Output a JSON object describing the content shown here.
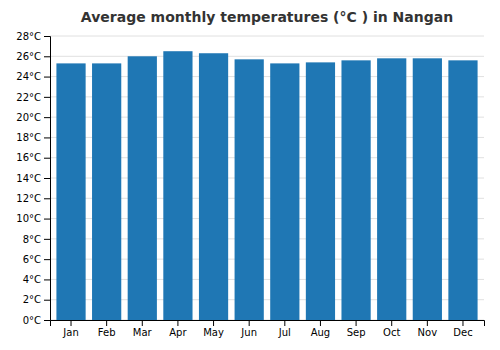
{
  "chart_data": {
    "type": "bar",
    "title": "Average monthly temperatures (°C ) in Nangan",
    "categories": [
      "Jan",
      "Feb",
      "Mar",
      "Apr",
      "May",
      "Jun",
      "Jul",
      "Aug",
      "Sep",
      "Oct",
      "Nov",
      "Dec"
    ],
    "values": [
      25.3,
      25.3,
      26.0,
      26.5,
      26.3,
      25.7,
      25.3,
      25.4,
      25.6,
      25.8,
      25.8,
      25.6
    ],
    "ylim": [
      0,
      28
    ],
    "yticks": [
      {
        "value": 0,
        "label": "0°C"
      },
      {
        "value": 2,
        "label": "2°C"
      },
      {
        "value": 4,
        "label": "4°C"
      },
      {
        "value": 6,
        "label": "6°C"
      },
      {
        "value": 8,
        "label": "8°C"
      },
      {
        "value": 10,
        "label": "10°C"
      },
      {
        "value": 12,
        "label": "12°C"
      },
      {
        "value": 14,
        "label": "14°C"
      },
      {
        "value": 16,
        "label": "16°C"
      },
      {
        "value": 18,
        "label": "18°C"
      },
      {
        "value": 20,
        "label": "20°C"
      },
      {
        "value": 22,
        "label": "22°C"
      },
      {
        "value": 24,
        "label": "24°C"
      },
      {
        "value": 26,
        "label": "26°C"
      },
      {
        "value": 28,
        "label": "28°C"
      }
    ],
    "grid": true
  }
}
